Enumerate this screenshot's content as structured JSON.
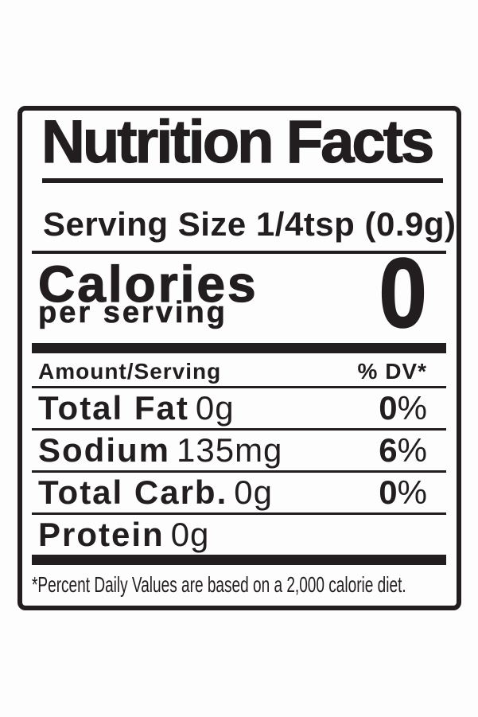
{
  "label": {
    "title": "Nutrition Facts",
    "serving_size": "Serving Size 1/4tsp (0.9g)",
    "calories": {
      "label": "Calories",
      "sub_label": "per serving",
      "value": "0"
    },
    "table": {
      "header": {
        "amount": "Amount/Serving",
        "dv": "% DV*"
      },
      "rows": [
        {
          "name": "Total Fat",
          "amount": "0g",
          "dv_value": "0",
          "dv_unit": "%"
        },
        {
          "name": "Sodium",
          "amount": "135mg",
          "dv_value": "6",
          "dv_unit": "%"
        },
        {
          "name": "Total Carb.",
          "amount": "0g",
          "dv_value": "0",
          "dv_unit": "%"
        },
        {
          "name": "Protein",
          "amount": "0g",
          "dv_value": "",
          "dv_unit": ""
        }
      ]
    },
    "footnote": "*Percent Daily Values are based on a 2,000 calorie diet.",
    "colors": {
      "ink": "#221e1f",
      "background": "#fdfdfd"
    }
  }
}
